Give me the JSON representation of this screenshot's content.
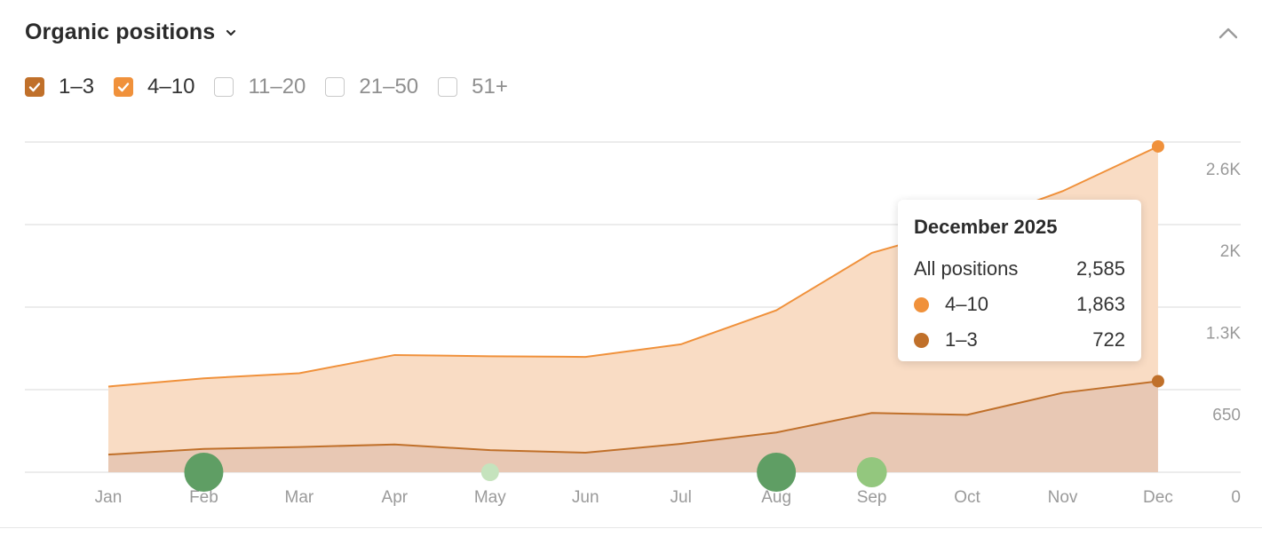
{
  "header": {
    "title": "Organic positions"
  },
  "filters": [
    {
      "label": "1–3",
      "checked": true,
      "color": "#c0702a"
    },
    {
      "label": "4–10",
      "checked": true,
      "color": "#f0913b"
    },
    {
      "label": "11–20",
      "checked": false,
      "color": "#c9c9c9"
    },
    {
      "label": "21–50",
      "checked": false,
      "color": "#c9c9c9"
    },
    {
      "label": "51+",
      "checked": false,
      "color": "#c9c9c9"
    }
  ],
  "chart_data": {
    "type": "area",
    "stacked": true,
    "categories": [
      "Jan",
      "Feb",
      "Mar",
      "Apr",
      "May",
      "Jun",
      "Jul",
      "Aug",
      "Sep",
      "Oct",
      "Nov",
      "Dec"
    ],
    "series": [
      {
        "name": "1–3",
        "color": "#c0702a",
        "fill": "#e8c8b4",
        "values": [
          140,
          185,
          200,
          220,
          175,
          155,
          225,
          315,
          470,
          455,
          630,
          722
        ]
      },
      {
        "name": "4–10",
        "color": "#f0913b",
        "fill": "#f9dcc4",
        "values": [
          540,
          560,
          585,
          710,
          745,
          760,
          790,
          970,
          1270,
          1500,
          1600,
          1863
        ]
      }
    ],
    "y_ticks": [
      {
        "value": 0,
        "label": "0"
      },
      {
        "value": 650,
        "label": "650"
      },
      {
        "value": 1300,
        "label": "1.3K"
      },
      {
        "value": 1950,
        "label": "2K"
      },
      {
        "value": 2600,
        "label": "2.6K"
      }
    ],
    "ylim": [
      0,
      2620
    ],
    "grid": true,
    "event_markers": [
      {
        "month": "Feb",
        "size": "large",
        "color": "#5f9e64"
      },
      {
        "month": "May",
        "size": "small",
        "color": "#c5e3bd"
      },
      {
        "month": "Aug",
        "size": "large",
        "color": "#5f9e64"
      },
      {
        "month": "Sep",
        "size": "medium",
        "color": "#93c77e"
      }
    ],
    "tooltip": {
      "title": "December 2025",
      "rows": [
        {
          "label": "All positions",
          "value": "2,585",
          "color": ""
        },
        {
          "label": "4–10",
          "value": "1,863",
          "color": "#f0913b"
        },
        {
          "label": "1–3",
          "value": "722",
          "color": "#c0702a"
        }
      ]
    }
  }
}
